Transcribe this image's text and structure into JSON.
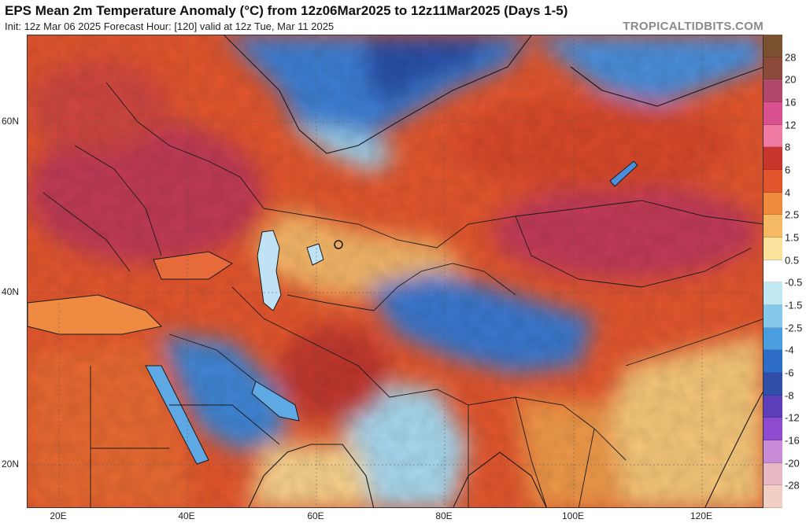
{
  "header": {
    "title": "EPS Mean 2m Temperature Anomaly (°C) from 12z06Mar2025 to 12z11Mar2025 (Days 1-5)",
    "subtitle": "Init: 12z Mar 06 2025   Forecast Hour: [120]   valid at 12z Tue, Mar 11 2025",
    "brand": "TROPICALTIDBITS.COM"
  },
  "map": {
    "lat_labels": [
      "60N",
      "40N",
      "20N"
    ],
    "lon_labels": [
      "20E",
      "40E",
      "60E",
      "80E",
      "100E",
      "120E"
    ]
  },
  "legend": {
    "labels": [
      "28",
      "20",
      "16",
      "12",
      "8",
      "6",
      "4",
      "2.5",
      "1.5",
      "0.5",
      "-0.5",
      "-1.5",
      "-2.5",
      "-4",
      "-6",
      "-8",
      "-12",
      "-16",
      "-20",
      "-28"
    ],
    "colors": [
      "#7a5230",
      "#8c4a3a",
      "#b0486b",
      "#d9528f",
      "#ef7aa3",
      "#c8352b",
      "#e2542b",
      "#f08a3c",
      "#f6b963",
      "#fbe39e",
      "#ffffff",
      "#bfe8f2",
      "#86c8eb",
      "#4a9ee0",
      "#2e6cc9",
      "#2f4fa8",
      "#5c3fb8",
      "#8f4bd0",
      "#c98ad8",
      "#e8b8c4",
      "#f2cfc4"
    ]
  },
  "colors": {
    "land_warm": "#e85a2c",
    "land_hot": "#c0304a",
    "land_mild": "#f6c77a",
    "cold": "#3f86d6",
    "very_cold": "#2a4fa8",
    "ocean": "#bfe3f5",
    "border": "#1a1a1a"
  }
}
